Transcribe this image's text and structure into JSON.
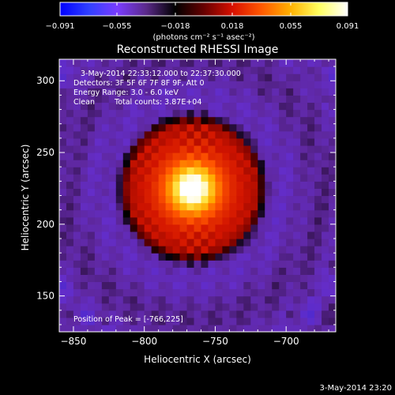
{
  "chart_data": {
    "type": "heatmap",
    "title": "Reconstructed RHESSI Image",
    "xlabel": "Heliocentric X (arcsec)",
    "ylabel": "Heliocentric Y (arcsec)",
    "xlim": [
      -860,
      -665
    ],
    "ylim": [
      125,
      315
    ],
    "x_ticks": [
      -850,
      -800,
      -750,
      -700
    ],
    "y_ticks": [
      150,
      200,
      250,
      300
    ],
    "colorbar": {
      "ticks": [
        -0.091,
        -0.055,
        -0.018,
        0.018,
        0.055,
        0.091
      ],
      "tick_labels": [
        "-0.091",
        "-0.055",
        "-0.018",
        "0.018",
        "0.055",
        "0.091"
      ],
      "units": "(photons cm⁻² s⁻¹ asec⁻²)",
      "colors": [
        "#0000ff",
        "#3040ff",
        "#7a3cff",
        "#5b2a8a",
        "#000000",
        "#660000",
        "#d81000",
        "#ff5800",
        "#ffb000",
        "#ffff60",
        "#ffffff"
      ]
    },
    "source": {
      "peak_x": -766,
      "peak_y": 225,
      "peak_value": 0.091,
      "background_value": -0.02
    },
    "annotations": {
      "time_range": "3-May-2014 22:33:12.000 to 22:37:30.000",
      "detectors": "Detectors: 3F 5F 6F 7F 8F 9F, Att 0",
      "energy": "Energy Range: 3.0 - 6.0 keV",
      "method": "Clean",
      "counts": "Total counts: 3.87E+04",
      "peak": "Position of Peak = [-766,225]"
    },
    "footer": "3-May-2014 23:20"
  }
}
